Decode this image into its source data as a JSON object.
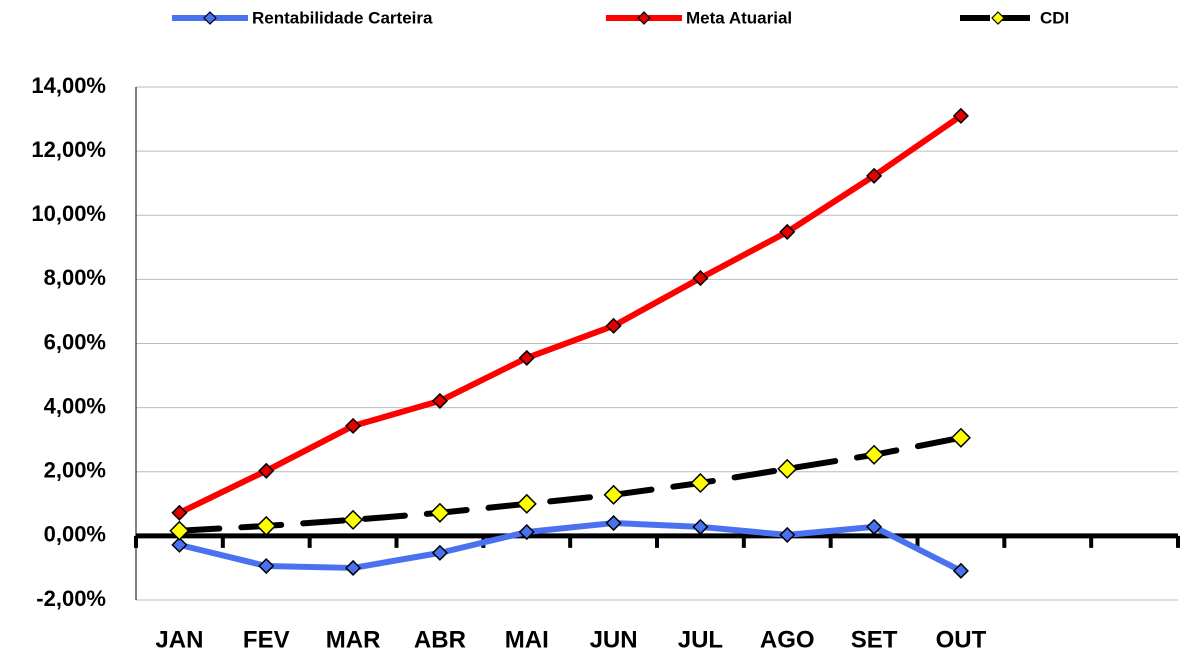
{
  "chart_data": {
    "type": "line",
    "categories": [
      "JAN",
      "FEV",
      "MAR",
      "ABR",
      "MAI",
      "JUN",
      "JUL",
      "AGO",
      "SET",
      "OUT",
      null,
      null
    ],
    "series": [
      {
        "name": "Rentabilidade Carteira",
        "color": "#4a72f0",
        "marker_color": "#4a72f0",
        "line_style": "solid",
        "values": [
          -0.28,
          -0.94,
          -1.0,
          -0.53,
          0.12,
          0.4,
          0.28,
          0.03,
          0.28,
          -1.09,
          null,
          null
        ]
      },
      {
        "name": "Meta Atuarial",
        "color": "#ff0000",
        "marker_color": "#e00000",
        "line_style": "solid",
        "values": [
          0.72,
          2.03,
          3.43,
          4.21,
          5.55,
          6.55,
          8.04,
          9.48,
          11.23,
          13.1,
          null,
          null
        ]
      },
      {
        "name": "CDI",
        "color": "#000000",
        "marker_color": "#ffff00",
        "line_style": "dashed",
        "values": [
          0.16,
          0.31,
          0.5,
          0.72,
          1.0,
          1.28,
          1.65,
          2.09,
          2.53,
          3.06,
          null,
          null
        ]
      }
    ],
    "ylim": [
      -2,
      14
    ],
    "yticks": [
      {
        "value": -2,
        "label": "-2,00%"
      },
      {
        "value": 0,
        "label": "0,00%"
      },
      {
        "value": 2,
        "label": "2,00%"
      },
      {
        "value": 4,
        "label": "4,00%"
      },
      {
        "value": 6,
        "label": "6,00%"
      },
      {
        "value": 8,
        "label": "8,00%"
      },
      {
        "value": 10,
        "label": "10,00%"
      },
      {
        "value": 12,
        "label": "12,00%"
      },
      {
        "value": 14,
        "label": "14,00%"
      }
    ],
    "grid": true,
    "legend": "top"
  }
}
